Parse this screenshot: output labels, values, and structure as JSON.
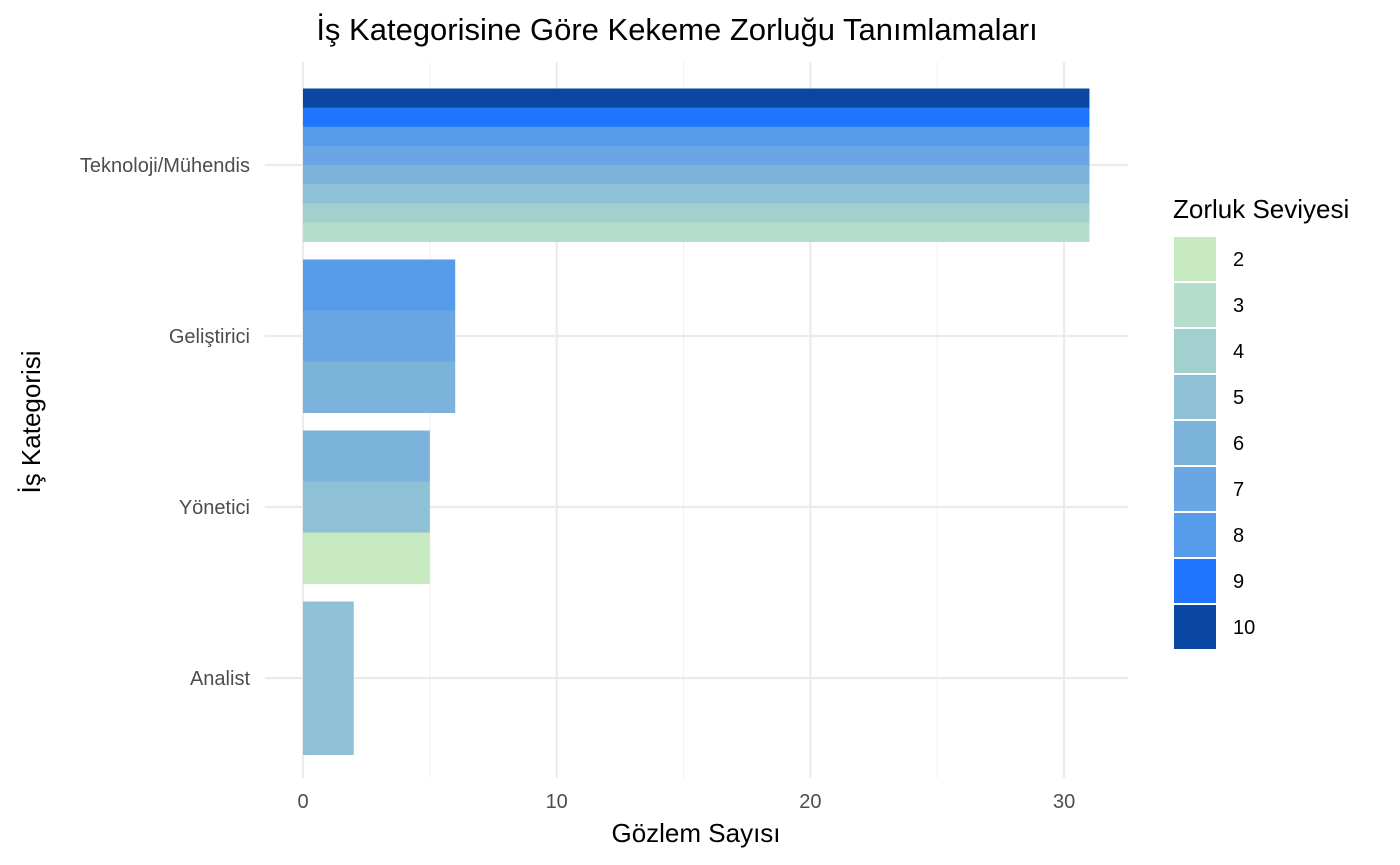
{
  "chart_data": {
    "type": "bar",
    "orientation": "horizontal",
    "stacking": "fill-within-bar",
    "title": "İş Kategorisine Göre Kekeme Zorluğu Tanımlamaları",
    "xlabel": "Gözlem Sayısı",
    "ylabel": "İş Kategorisi",
    "xlim": [
      0,
      32.5
    ],
    "xticks": [
      0,
      10,
      20,
      30
    ],
    "grid": true,
    "categories": [
      "Teknoloji/Mühendis",
      "Geliştirici",
      "Yönetici",
      "Analist"
    ],
    "values": [
      31,
      6,
      5,
      2
    ],
    "levels_present": [
      [
        3,
        4,
        5,
        6,
        7,
        8,
        9,
        10
      ],
      [
        6,
        7,
        8
      ],
      [
        2,
        5,
        6
      ],
      [
        5
      ]
    ],
    "legend": {
      "title": "Zorluk Seviyesi",
      "position": "right",
      "items": [
        {
          "label": "2",
          "color": "#C7E9C0"
        },
        {
          "label": "3",
          "color": "#B4DDCB"
        },
        {
          "label": "4",
          "color": "#A1D0CF"
        },
        {
          "label": "5",
          "color": "#8EC1D6"
        },
        {
          "label": "6",
          "color": "#7BB3DA"
        },
        {
          "label": "7",
          "color": "#69A6E3"
        },
        {
          "label": "8",
          "color": "#569AEA"
        },
        {
          "label": "9",
          "color": "#1F75FE"
        },
        {
          "label": "10",
          "color": "#0A47A3"
        }
      ]
    }
  }
}
